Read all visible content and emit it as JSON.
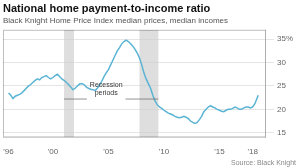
{
  "chart_data": {
    "type": "line",
    "title": "National home payment-to-income ratio",
    "subtitle": "Black Knight Home Price Index median prices, median incomes",
    "source": "Source: Black Knight",
    "color": "#5ab4d4",
    "grid": "y",
    "legend": false,
    "xlim": [
      1995.5,
      2019.2
    ],
    "xticks": [
      {
        "value": 1996,
        "label": "'96"
      },
      {
        "value": 2000,
        "label": "'00"
      },
      {
        "value": 2005,
        "label": "'05"
      },
      {
        "value": 2010,
        "label": "'10"
      },
      {
        "value": 2015,
        "label": "'15"
      },
      {
        "value": 2018,
        "label": "'18"
      }
    ],
    "ylim": [
      14,
      37
    ],
    "yticks": [
      15,
      20,
      25,
      30,
      {
        "value": 35,
        "label": "35%"
      }
    ],
    "recession_periods": [
      [
        2001.0,
        2001.9
      ],
      [
        2007.8,
        2009.5
      ]
    ],
    "annotations": [
      {
        "text": "Recession\nperiods",
        "x": 2004.8,
        "y": 22.2
      }
    ],
    "x": [
      1996.0,
      1996.2,
      1996.4,
      1996.6,
      1996.8,
      1997.0,
      1997.2,
      1997.4,
      1997.6,
      1997.8,
      1998.0,
      1998.2,
      1998.4,
      1998.6,
      1998.8,
      1999.0,
      1999.2,
      1999.4,
      1999.6,
      1999.8,
      2000.0,
      2000.2,
      2000.4,
      2000.6,
      2000.8,
      2001.0,
      2001.2,
      2001.4,
      2001.6,
      2001.8,
      2002.0,
      2002.2,
      2002.4,
      2002.6,
      2002.8,
      2003.0,
      2003.2,
      2003.4,
      2003.6,
      2003.8,
      2004.0,
      2004.2,
      2004.4,
      2004.6,
      2004.8,
      2005.0,
      2005.2,
      2005.4,
      2005.6,
      2005.8,
      2006.0,
      2006.2,
      2006.4,
      2006.6,
      2006.8,
      2007.0,
      2007.2,
      2007.4,
      2007.6,
      2007.8,
      2008.0,
      2008.2,
      2008.4,
      2008.6,
      2008.8,
      2009.0,
      2009.2,
      2009.4,
      2009.6,
      2009.8,
      2010.0,
      2010.2,
      2010.4,
      2010.6,
      2010.8,
      2011.0,
      2011.2,
      2011.4,
      2011.6,
      2011.8,
      2012.0,
      2012.2,
      2012.4,
      2012.6,
      2012.8,
      2013.0,
      2013.2,
      2013.4,
      2013.6,
      2013.8,
      2014.0,
      2014.2,
      2014.4,
      2014.6,
      2014.8,
      2015.0,
      2015.2,
      2015.4,
      2015.6,
      2015.8,
      2016.0,
      2016.2,
      2016.4,
      2016.6,
      2016.8,
      2017.0,
      2017.2,
      2017.4,
      2017.6,
      2017.8,
      2018.0,
      2018.2,
      2018.5
    ],
    "values": [
      23.5,
      23.0,
      22.3,
      22.8,
      23.0,
      23.2,
      23.5,
      24.0,
      24.5,
      25.0,
      25.3,
      25.8,
      26.2,
      26.5,
      26.3,
      26.8,
      27.0,
      27.2,
      26.8,
      26.5,
      26.8,
      27.2,
      27.5,
      27.0,
      26.5,
      26.2,
      25.8,
      25.3,
      24.8,
      24.2,
      24.5,
      25.0,
      25.4,
      25.5,
      25.3,
      24.8,
      24.5,
      24.3,
      24.2,
      24.0,
      24.5,
      25.2,
      26.0,
      27.0,
      27.8,
      28.5,
      29.5,
      30.5,
      31.5,
      32.5,
      33.2,
      34.0,
      34.5,
      34.8,
      34.5,
      34.0,
      33.5,
      32.8,
      32.0,
      31.0,
      29.5,
      27.8,
      26.5,
      25.5,
      24.5,
      23.0,
      21.8,
      21.0,
      20.5,
      20.2,
      19.8,
      19.5,
      19.2,
      19.0,
      18.8,
      18.5,
      18.3,
      18.2,
      18.3,
      18.5,
      18.3,
      18.0,
      17.5,
      17.2,
      17.0,
      17.2,
      17.8,
      18.5,
      19.5,
      20.0,
      20.5,
      20.8,
      20.5,
      20.3,
      20.0,
      19.8,
      19.6,
      19.5,
      19.8,
      20.0,
      20.0,
      20.2,
      20.5,
      20.3,
      20.0,
      20.0,
      20.3,
      20.5,
      20.5,
      20.3,
      20.5,
      21.2,
      23.0
    ]
  }
}
